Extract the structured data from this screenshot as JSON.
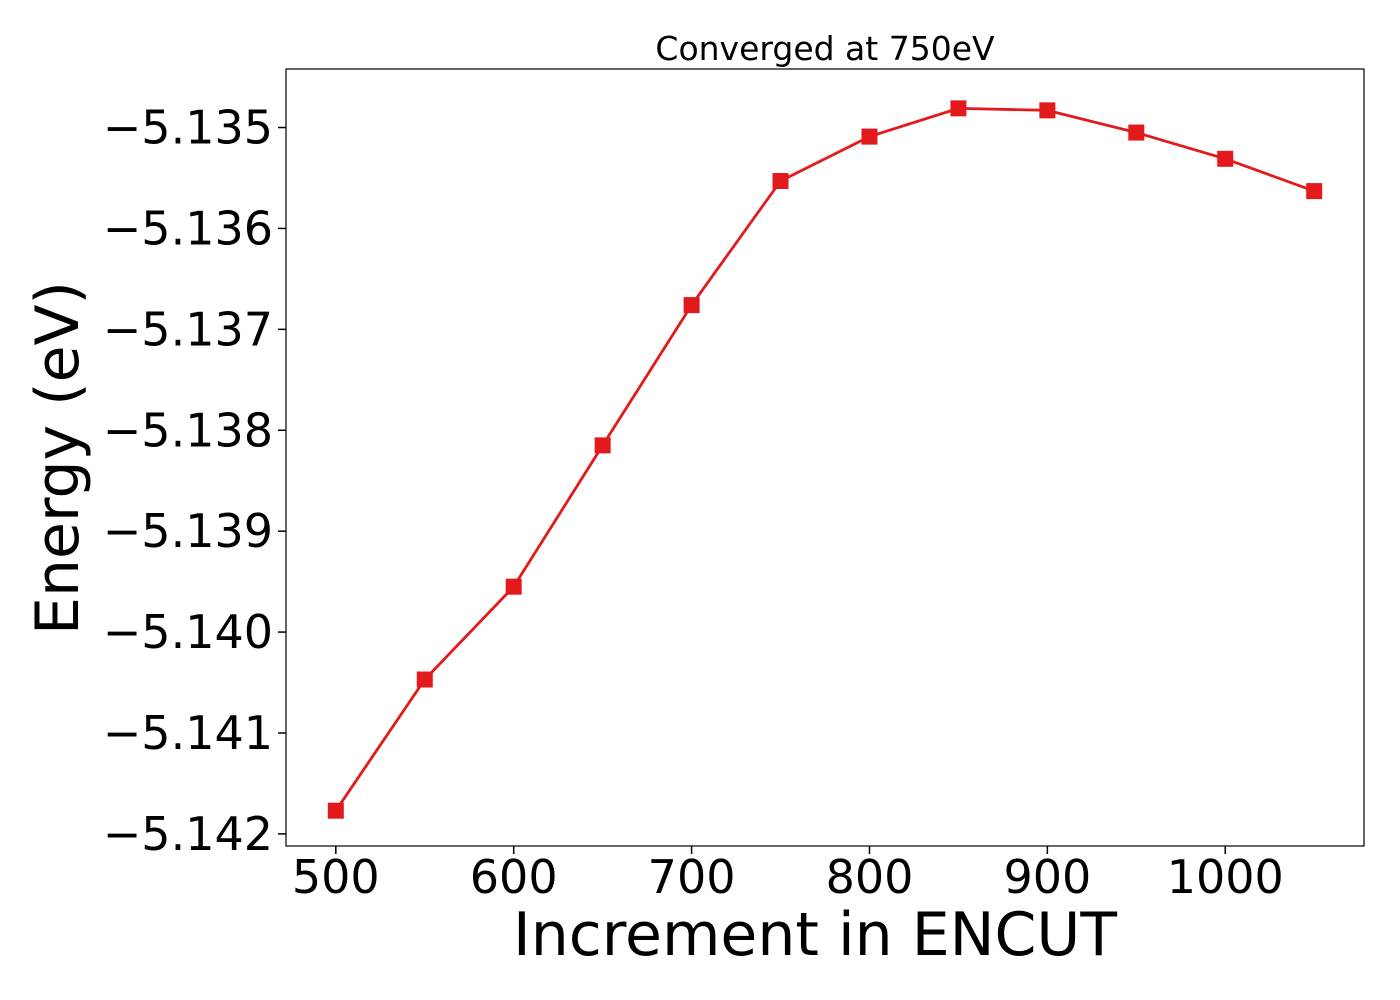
{
  "chart_data": {
    "type": "line",
    "title": "Converged at 750eV",
    "xlabel": "Increment in ENCUT",
    "ylabel": "Energy (eV)",
    "xlim": [
      472,
      1078
    ],
    "ylim": [
      -5.14212,
      -5.13442
    ],
    "xticks": [
      500,
      600,
      700,
      800,
      900,
      1000
    ],
    "yticks": [
      -5.135,
      -5.136,
      -5.137,
      -5.138,
      -5.139,
      -5.14,
      -5.141,
      -5.142
    ],
    "ytick_labels": [
      "−5.135",
      "−5.136",
      "−5.137",
      "−5.138",
      "−5.139",
      "−5.140",
      "−5.141",
      "−5.142"
    ],
    "grid": false,
    "series": [
      {
        "color": "#e31a1c",
        "marker": "square",
        "x": [
          500,
          550,
          600,
          650,
          700,
          750,
          800,
          850,
          900,
          950,
          1000,
          1050
        ],
        "y": [
          -5.14177,
          -5.14047,
          -5.13955,
          -5.13815,
          -5.13676,
          -5.13553,
          -5.13509,
          -5.13481,
          -5.13483,
          -5.13505,
          -5.13531,
          -5.13563
        ]
      }
    ]
  }
}
